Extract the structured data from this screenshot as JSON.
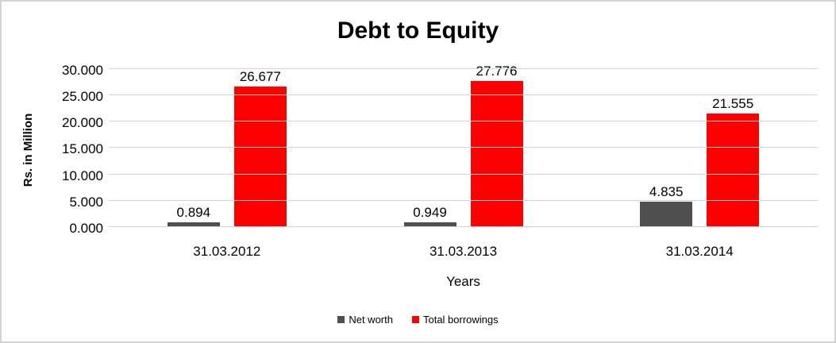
{
  "chart_data": {
    "type": "bar",
    "title": "Debt to Equity",
    "xlabel": "Years",
    "ylabel": "Rs. in Million",
    "categories": [
      "31.03.2012",
      "31.03.2013",
      "31.03.2014"
    ],
    "series": [
      {
        "name": "Net worth",
        "color": "#4f4f4f",
        "values": [
          0.894,
          0.949,
          4.835
        ],
        "labels": [
          "0.894",
          "0.949",
          "4.835"
        ]
      },
      {
        "name": "Total borrowings",
        "color": "#ff0000",
        "values": [
          26.677,
          27.776,
          21.555
        ],
        "labels": [
          "26.677",
          "27.776",
          "21.555"
        ]
      }
    ],
    "ylim": [
      0,
      30
    ],
    "ytick_step": 5,
    "yticks": [
      "0.000",
      "5.000",
      "10.000",
      "15.000",
      "20.000",
      "25.000",
      "30.000"
    ],
    "grid": true,
    "legend_position": "bottom"
  },
  "colors": {
    "gridline": "#d2d2d2",
    "border": "#d3d3d3",
    "background": "#ffffff",
    "text": "#000000"
  }
}
